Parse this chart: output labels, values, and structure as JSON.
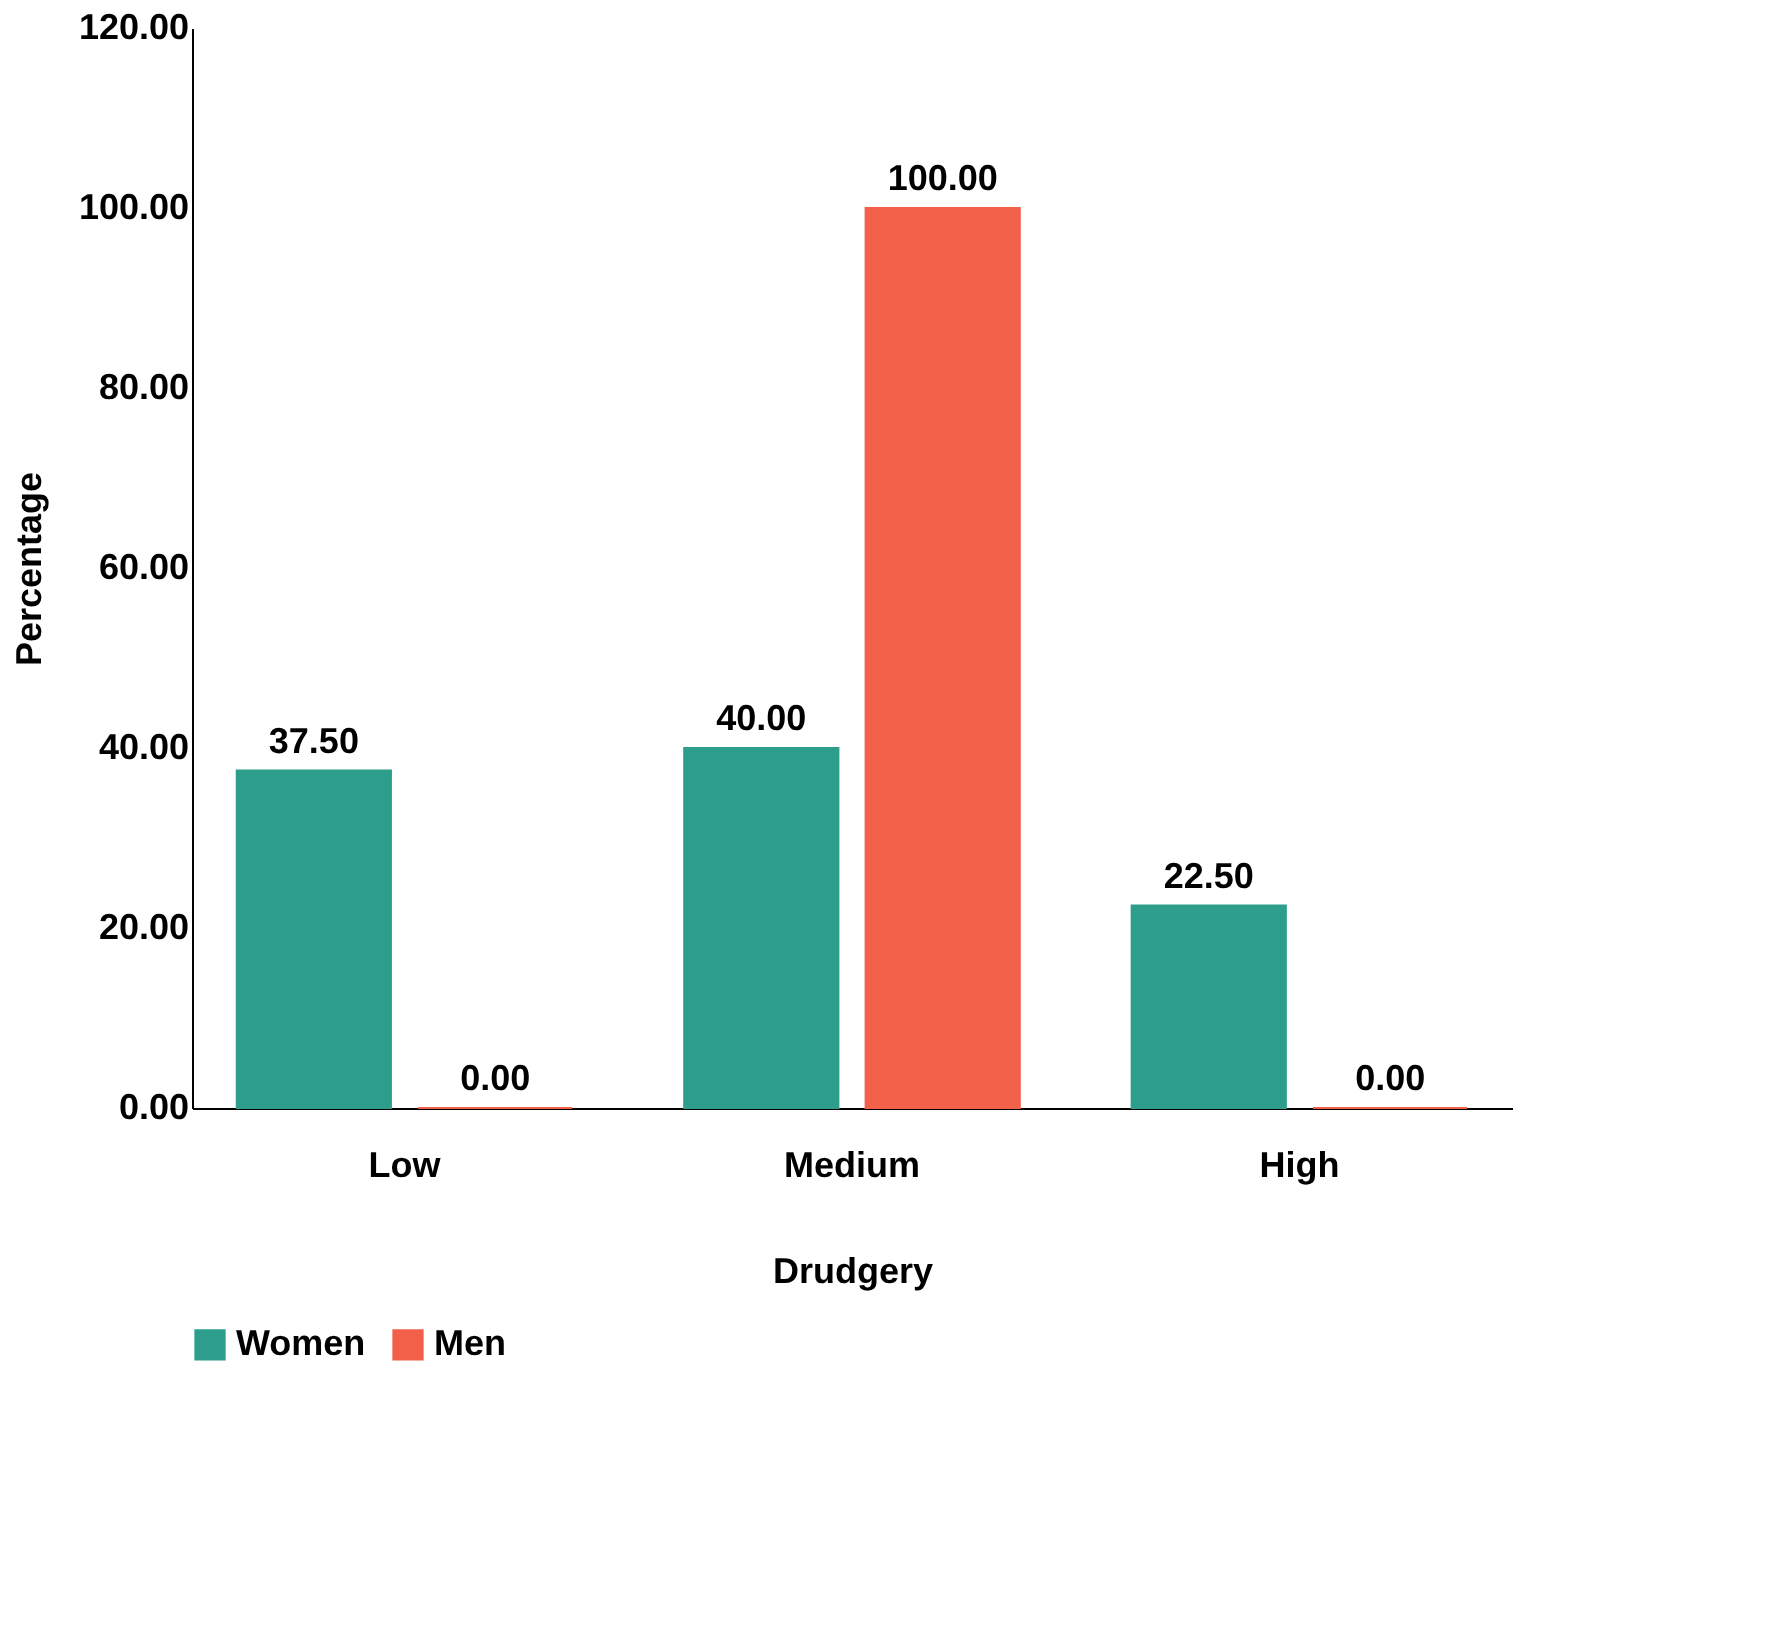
{
  "chart_data": {
    "type": "bar",
    "xlabel": "Drudgery",
    "ylabel": "Percentage",
    "categories": [
      "Low",
      "Medium",
      "High"
    ],
    "series": [
      {
        "name": "Women",
        "color": "#2e9e8c",
        "values": [
          37.5,
          40,
          22.5
        ],
        "value_labels": [
          "37.50",
          "40.00",
          "22.50"
        ]
      },
      {
        "name": "Men",
        "color": "#f2604a",
        "values": [
          0,
          100,
          0
        ],
        "value_labels": [
          "0.00",
          "100.00",
          "0.00"
        ]
      }
    ],
    "ylim": [
      0,
      120
    ],
    "yticks": [
      {
        "value": 0,
        "label": "0.00"
      },
      {
        "value": 20,
        "label": "20.00"
      },
      {
        "value": 40,
        "label": "40.00"
      },
      {
        "value": 60,
        "label": "60.00"
      },
      {
        "value": 80,
        "label": "80.00"
      },
      {
        "value": 100,
        "label": "100.00"
      },
      {
        "value": 120,
        "label": "120.00"
      }
    ],
    "grid": false,
    "legend": "bottom left"
  }
}
